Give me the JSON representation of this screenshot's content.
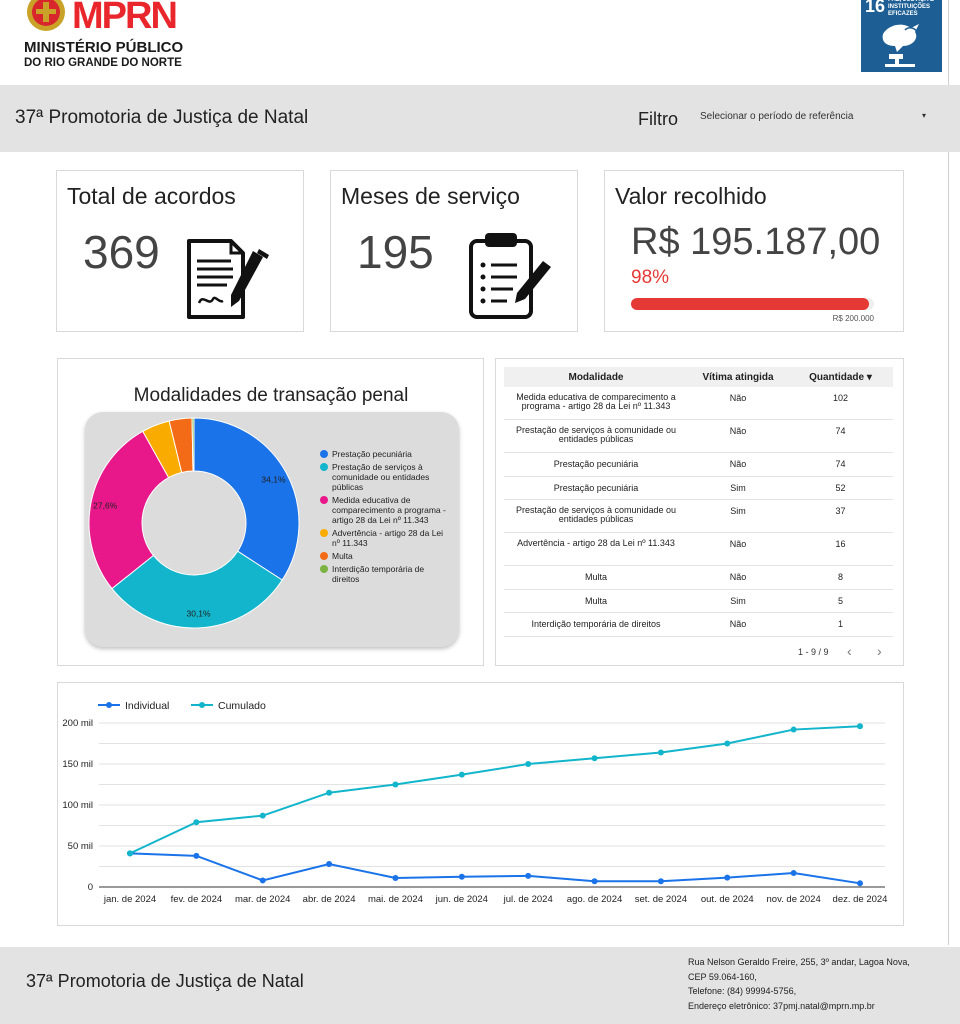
{
  "header": {
    "logo_word": "MPRN",
    "logo_line1": "MINISTÉRIO PÚBLICO",
    "logo_line2": "DO RIO GRANDE DO NORTE",
    "ods_number": "16",
    "ods_text": "PAZ, JUSTIÇA E INSTITUIÇÕES EFICAZES"
  },
  "band": {
    "title": "37ª Promotoria de Justiça de Natal",
    "filter_label": "Filtro",
    "filter_placeholder": "Selecionar o período de referência"
  },
  "kpis": {
    "acordos": {
      "title": "Total de acordos",
      "value": "369",
      "icon": "contract-icon"
    },
    "meses": {
      "title": "Meses de serviço",
      "value": "195",
      "icon": "clipboard-checklist-icon"
    },
    "valor": {
      "title": "Valor recolhido",
      "value": "R$ 195.187,00",
      "percent_label": "98%",
      "progress": 0.98,
      "target_label": "R$ 200.000",
      "color": "#e53935"
    }
  },
  "donut": {
    "title": "Modalidades de transação penal",
    "slices": [
      {
        "label": "Prestação pecuniária",
        "value": 34.1,
        "color": "#1a73e8",
        "display": "34,1%"
      },
      {
        "label": "Prestação de serviços à comunidade ou entidades públicas",
        "value": 30.1,
        "color": "#12b5cb",
        "display": "30,1%"
      },
      {
        "label": "Medida educativa de comparecimento a programa - artigo 28 da Lei nº 11.343",
        "value": 27.6,
        "color": "#e8178a",
        "display": "27,6%"
      },
      {
        "label": "Advertência - artigo 28 da Lei nº 11.343",
        "value": 4.3,
        "color": "#f9ab00",
        "display": ""
      },
      {
        "label": "Multa",
        "value": 3.5,
        "color": "#f36b17",
        "display": ""
      },
      {
        "label": "Interdição temporária de direitos",
        "value": 0.3,
        "color": "#7cb342",
        "display": ""
      }
    ]
  },
  "table": {
    "headers": [
      "Modalidade",
      "Vítima atingida",
      "Quantidade"
    ],
    "sort_indicator": "▾",
    "rows": [
      {
        "modalidade": "Medida educativa de comparecimento a programa - artigo 28 da Lei nº 11.343",
        "vitima": "Não",
        "quantidade": "102"
      },
      {
        "modalidade": "Prestação de serviços à comunidade ou entidades públicas",
        "vitima": "Não",
        "quantidade": "74"
      },
      {
        "modalidade": "Prestação pecuniária",
        "vitima": "Não",
        "quantidade": "74"
      },
      {
        "modalidade": "Prestação pecuniária",
        "vitima": "Sim",
        "quantidade": "52"
      },
      {
        "modalidade": "Prestação de serviços à comunidade ou entidades públicas",
        "vitima": "Sim",
        "quantidade": "37"
      },
      {
        "modalidade": "Advertência - artigo 28 da Lei nº 11.343",
        "vitima": "Não",
        "quantidade": "16"
      },
      {
        "modalidade": "Multa",
        "vitima": "Não",
        "quantidade": "8"
      },
      {
        "modalidade": "Multa",
        "vitima": "Sim",
        "quantidade": "5"
      },
      {
        "modalidade": "Interdição temporária de direitos",
        "vitima": "Não",
        "quantidade": "1"
      }
    ],
    "pager": "1 - 9 / 9",
    "prev": "‹",
    "next": "›"
  },
  "chart_data": {
    "type": "line",
    "x": [
      "jan. de 2024",
      "fev. de 2024",
      "mar. de 2024",
      "abr. de 2024",
      "mai. de 2024",
      "jun. de 2024",
      "jul. de 2024",
      "ago. de 2024",
      "set. de 2024",
      "out. de 2024",
      "nov. de 2024",
      "dez. de 2024"
    ],
    "series": [
      {
        "name": "Individual",
        "color": "#1a73e8",
        "values": [
          41000,
          38000,
          8000,
          28000,
          11000,
          12500,
          13500,
          7000,
          7000,
          11500,
          17000,
          4500
        ]
      },
      {
        "name": "Cumulado",
        "color": "#12b5cb",
        "values": [
          41000,
          79000,
          87000,
          115000,
          125000,
          137000,
          150000,
          157000,
          164000,
          175000,
          192000,
          196000
        ]
      }
    ],
    "ylim": [
      0,
      200000
    ],
    "yticks": [
      0,
      50000,
      100000,
      150000,
      200000
    ],
    "ytick_labels": [
      "0",
      "50 mil",
      "100 mil",
      "150 mil",
      "200 mil"
    ],
    "grid": true,
    "legend": "top-left"
  },
  "footer": {
    "title": "37ª Promotoria de Justiça de Natal",
    "address1": "Rua Nelson Geraldo Freire, 255, 3º andar, Lagoa Nova,",
    "address2": "CEP 59.064-160,",
    "phone": "Telefone: (84) 99994-5756,",
    "email": "Endereço eletrônico: 37pmj.natal@mprn.mp.br"
  }
}
